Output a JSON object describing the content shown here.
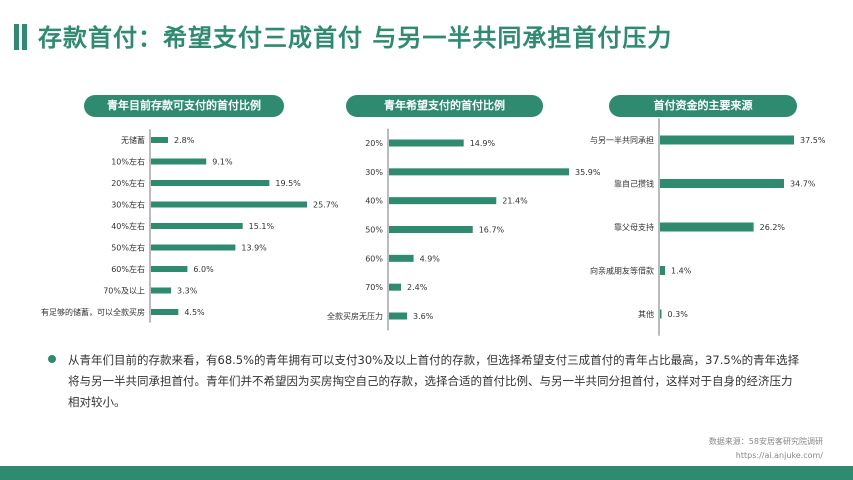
{
  "header": {
    "title": "存款首付：希望支付三成首付 与另一半共同承担首付压力",
    "accent_color": "#2e8b6f"
  },
  "chart_data": [
    {
      "type": "bar",
      "orientation": "horizontal",
      "title": "青年目前存款可支付的首付比例",
      "categories": [
        "无储蓄",
        "10%左右",
        "20%左右",
        "30%左右",
        "40%左右",
        "50%左右",
        "60%左右",
        "70%及以上",
        "有足够的储蓄，可以全款买房"
      ],
      "values": [
        2.8,
        9.1,
        19.5,
        25.7,
        15.1,
        13.9,
        6.0,
        3.3,
        4.5
      ],
      "value_labels": [
        "2.8%",
        "9.1%",
        "19.5%",
        "25.7%",
        "15.1%",
        "13.9%",
        "6.0%",
        "3.3%",
        "4.5%"
      ],
      "unit": "%",
      "bar_color": "#2e8b6f",
      "grid": false
    },
    {
      "type": "bar",
      "orientation": "horizontal",
      "title": "青年希望支付的首付比例",
      "categories": [
        "20%",
        "30%",
        "40%",
        "50%",
        "60%",
        "70%",
        "全款买房无压力"
      ],
      "values": [
        14.9,
        35.9,
        21.4,
        16.7,
        4.9,
        2.4,
        3.6
      ],
      "value_labels": [
        "14.9%",
        "35.9%",
        "21.4%",
        "16.7%",
        "4.9%",
        "2.4%",
        "3.6%"
      ],
      "unit": "%",
      "bar_color": "#2e8b6f",
      "grid": false
    },
    {
      "type": "bar",
      "orientation": "horizontal",
      "title": "首付资金的主要来源",
      "categories": [
        "与另一半共同承担",
        "靠自己攒钱",
        "靠父母支持",
        "向亲戚朋友等借款",
        "其他"
      ],
      "values": [
        37.5,
        34.7,
        26.2,
        1.4,
        0.3
      ],
      "value_labels": [
        "37.5%",
        "34.7%",
        "26.2%",
        "1.4%",
        "0.3%"
      ],
      "unit": "%",
      "bar_color": "#2e8b6f",
      "grid": false
    }
  ],
  "summary": "从青年们目前的存款来看，有68.5%的青年拥有可以支付30%及以上首付的存款，但选择希望支付三成首付的青年占比最高，37.5%的青年选择将与另一半共同承担首付。青年们并不希望因为买房掏空自己的存款，选择合适的首付比例、与另一半共同分担首付，这样对于自身的经济压力相对较小。",
  "footer": {
    "source": "数据来源：58安居客研究院调研",
    "url": "https://ai.anjuke.com/"
  }
}
